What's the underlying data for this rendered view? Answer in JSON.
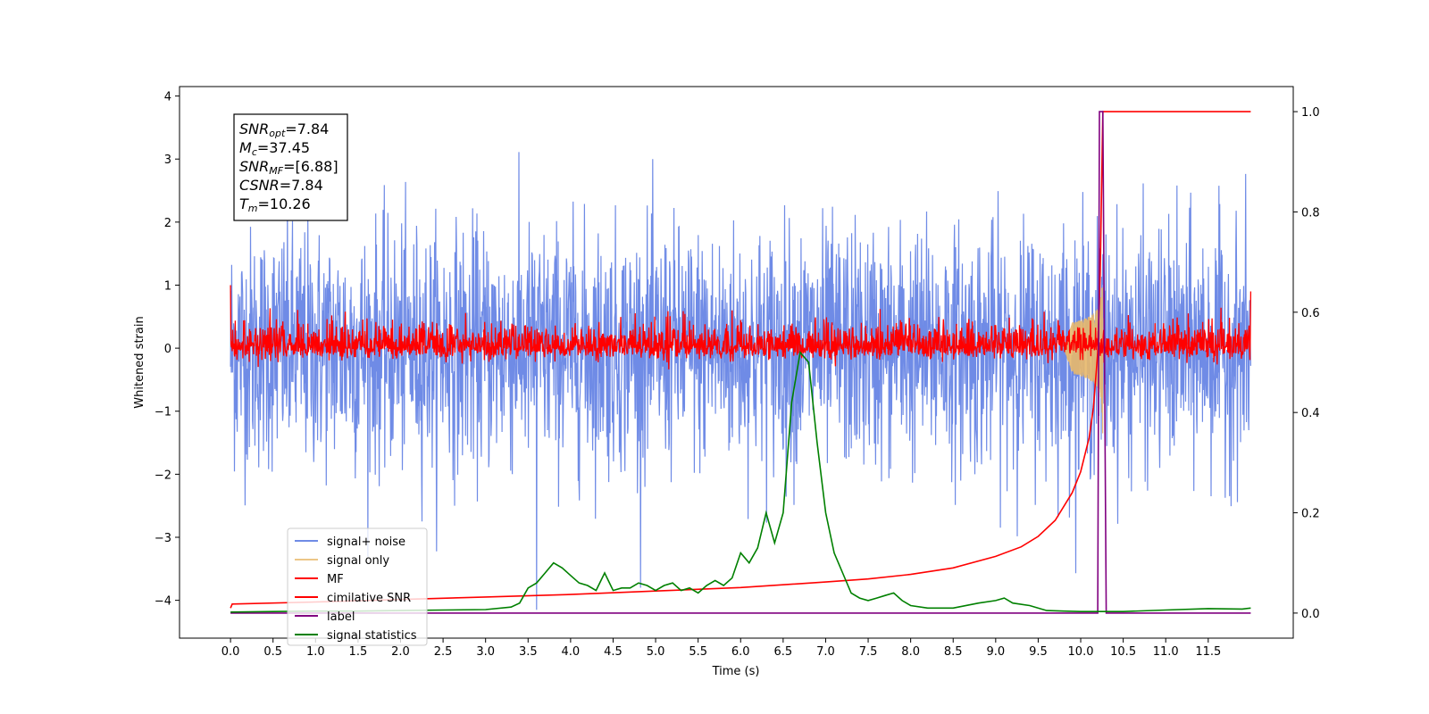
{
  "chart_data": {
    "type": "line",
    "xlabel": "Time (s)",
    "ylabel_left": "Whitened strain",
    "ylabel_right": "",
    "xlim": [
      -0.6,
      12.5
    ],
    "ylim_left": [
      -4.6,
      4.15
    ],
    "ylim_right": [
      -0.05,
      1.05
    ],
    "x_ticks": [
      "0.0",
      "0.5",
      "1.0",
      "1.5",
      "2.0",
      "2.5",
      "3.0",
      "3.5",
      "4.0",
      "4.5",
      "5.0",
      "5.5",
      "6.0",
      "6.5",
      "7.0",
      "7.5",
      "8.0",
      "8.5",
      "9.0",
      "9.5",
      "10.0",
      "10.5",
      "11.0",
      "11.5"
    ],
    "y_ticks_left": [
      -4,
      -3,
      -2,
      -1,
      0,
      1,
      2,
      3,
      4
    ],
    "y_ticks_right": [
      "0.0",
      "0.2",
      "0.4",
      "0.6",
      "0.8",
      "1.0"
    ],
    "grid": false,
    "legend_position": "lower-left",
    "stats_box": [
      {
        "sym": "SNR",
        "sub": "opt",
        "value": "=7.84"
      },
      {
        "sym": "M",
        "sub": "c",
        "value": "=37.45"
      },
      {
        "sym": "SNR",
        "sub": "MF",
        "value": "=[6.88]"
      },
      {
        "sym": "CSNR",
        "sub": "",
        "value": "=7.84"
      },
      {
        "sym": "T",
        "sub": "m",
        "value": "=10.26"
      }
    ],
    "series": [
      {
        "name": "signal+ noise",
        "color": "#6f8be6",
        "axis": "left",
        "kind": "noise",
        "x_range": [
          0,
          12
        ],
        "amplitude_std": 0.95,
        "max_abs": 3.8,
        "note_outlier": [
          3.6,
          -4.15
        ]
      },
      {
        "name": "signal only",
        "color": "#e8b86a",
        "axis": "left",
        "kind": "chirp",
        "x_range": [
          9.8,
          10.26
        ],
        "peak_amplitude": 1.5,
        "peak_time": 10.26
      },
      {
        "name": "MF",
        "color": "#ff0000",
        "axis": "left",
        "kind": "noise",
        "x_range": [
          0,
          12
        ],
        "amplitude_std": 0.12,
        "start_value": 1.0,
        "end_value": 0.9
      },
      {
        "name": "cimilative SNR",
        "color": "#ff0000",
        "axis": "right",
        "x": [
          0.0,
          0.02,
          1.0,
          2.0,
          3.0,
          4.0,
          5.0,
          6.0,
          7.0,
          7.5,
          8.0,
          8.5,
          9.0,
          9.3,
          9.5,
          9.7,
          9.9,
          10.0,
          10.1,
          10.15,
          10.2,
          10.23,
          10.26,
          10.3,
          11.5,
          12.0
        ],
        "values": [
          0.01,
          0.018,
          0.022,
          0.027,
          0.032,
          0.037,
          0.044,
          0.051,
          0.062,
          0.068,
          0.077,
          0.09,
          0.113,
          0.132,
          0.153,
          0.185,
          0.24,
          0.282,
          0.35,
          0.41,
          0.52,
          0.68,
          1.0,
          1.0,
          1.0,
          1.0
        ]
      },
      {
        "name": "label",
        "color": "#800080",
        "axis": "right",
        "x": [
          0.0,
          10.2,
          10.22,
          10.26,
          10.3,
          11.5,
          12.0
        ],
        "values": [
          0.0,
          0.0,
          1.0,
          1.0,
          0.0,
          0.0,
          0.0
        ]
      },
      {
        "name": "signal statistics",
        "color": "#008000",
        "axis": "right",
        "x": [
          0.0,
          0.5,
          1.0,
          1.5,
          2.0,
          2.5,
          3.0,
          3.3,
          3.4,
          3.5,
          3.6,
          3.7,
          3.8,
          3.9,
          4.0,
          4.1,
          4.2,
          4.3,
          4.4,
          4.5,
          4.6,
          4.7,
          4.8,
          4.9,
          5.0,
          5.1,
          5.2,
          5.3,
          5.4,
          5.5,
          5.6,
          5.7,
          5.8,
          5.9,
          6.0,
          6.1,
          6.2,
          6.3,
          6.4,
          6.5,
          6.6,
          6.7,
          6.8,
          6.9,
          7.0,
          7.1,
          7.2,
          7.3,
          7.4,
          7.5,
          7.6,
          7.7,
          7.8,
          7.9,
          8.0,
          8.2,
          8.5,
          8.8,
          9.0,
          9.1,
          9.2,
          9.4,
          9.6,
          9.8,
          10.0,
          10.5,
          11.0,
          11.5,
          11.9,
          12.0
        ],
        "values": [
          0.002,
          0.003,
          0.004,
          0.004,
          0.005,
          0.006,
          0.007,
          0.012,
          0.02,
          0.05,
          0.06,
          0.08,
          0.1,
          0.09,
          0.075,
          0.06,
          0.055,
          0.045,
          0.08,
          0.045,
          0.05,
          0.05,
          0.06,
          0.055,
          0.045,
          0.055,
          0.06,
          0.045,
          0.05,
          0.04,
          0.055,
          0.065,
          0.055,
          0.07,
          0.12,
          0.1,
          0.13,
          0.2,
          0.14,
          0.2,
          0.42,
          0.52,
          0.5,
          0.34,
          0.2,
          0.12,
          0.08,
          0.04,
          0.03,
          0.025,
          0.03,
          0.035,
          0.04,
          0.025,
          0.015,
          0.01,
          0.01,
          0.02,
          0.025,
          0.03,
          0.02,
          0.015,
          0.005,
          0.004,
          0.003,
          0.003,
          0.006,
          0.009,
          0.008,
          0.01
        ]
      }
    ]
  }
}
